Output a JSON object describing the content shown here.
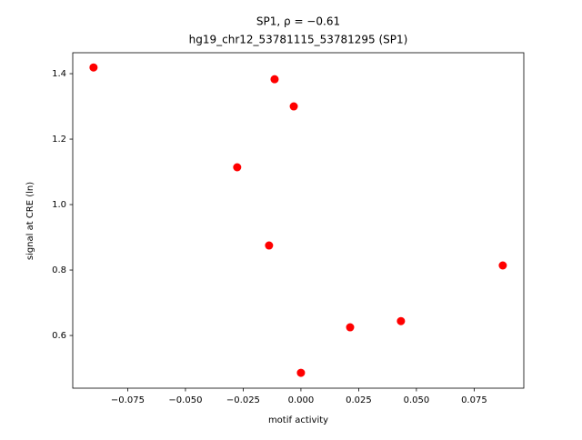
{
  "chart_data": {
    "type": "scatter",
    "title": [
      "SP1, ρ = −0.61",
      "hg19_chr12_53781115_53781295 (SP1)"
    ],
    "x_label": "motif activity",
    "y_label": "signal at CRE (ln)",
    "color": "#ff0000",
    "x": [
      -0.0898,
      -0.0114,
      -0.0031,
      -0.0276,
      -0.0138,
      0.0874,
      0.0213,
      0.0433,
      0.0
    ],
    "values": [
      1.419,
      1.383,
      1.3,
      1.114,
      0.875,
      0.814,
      0.625,
      0.644,
      0.486
    ],
    "xlim": [
      -0.0988,
      0.0965
    ],
    "ylim": [
      0.439,
      1.464
    ],
    "xticks": [
      {
        "value": -0.075,
        "label": "−0.075"
      },
      {
        "value": -0.05,
        "label": "−0.050"
      },
      {
        "value": -0.025,
        "label": "−0.025"
      },
      {
        "value": 0,
        "label": "0.000"
      },
      0.025,
      {
        "value": 0.05,
        "label": "0.050"
      },
      0.075
    ],
    "yticks": [
      0.6,
      0.8,
      {
        "value": 1.0,
        "label": "1.0"
      },
      1.2,
      1.4
    ],
    "grid": false
  }
}
